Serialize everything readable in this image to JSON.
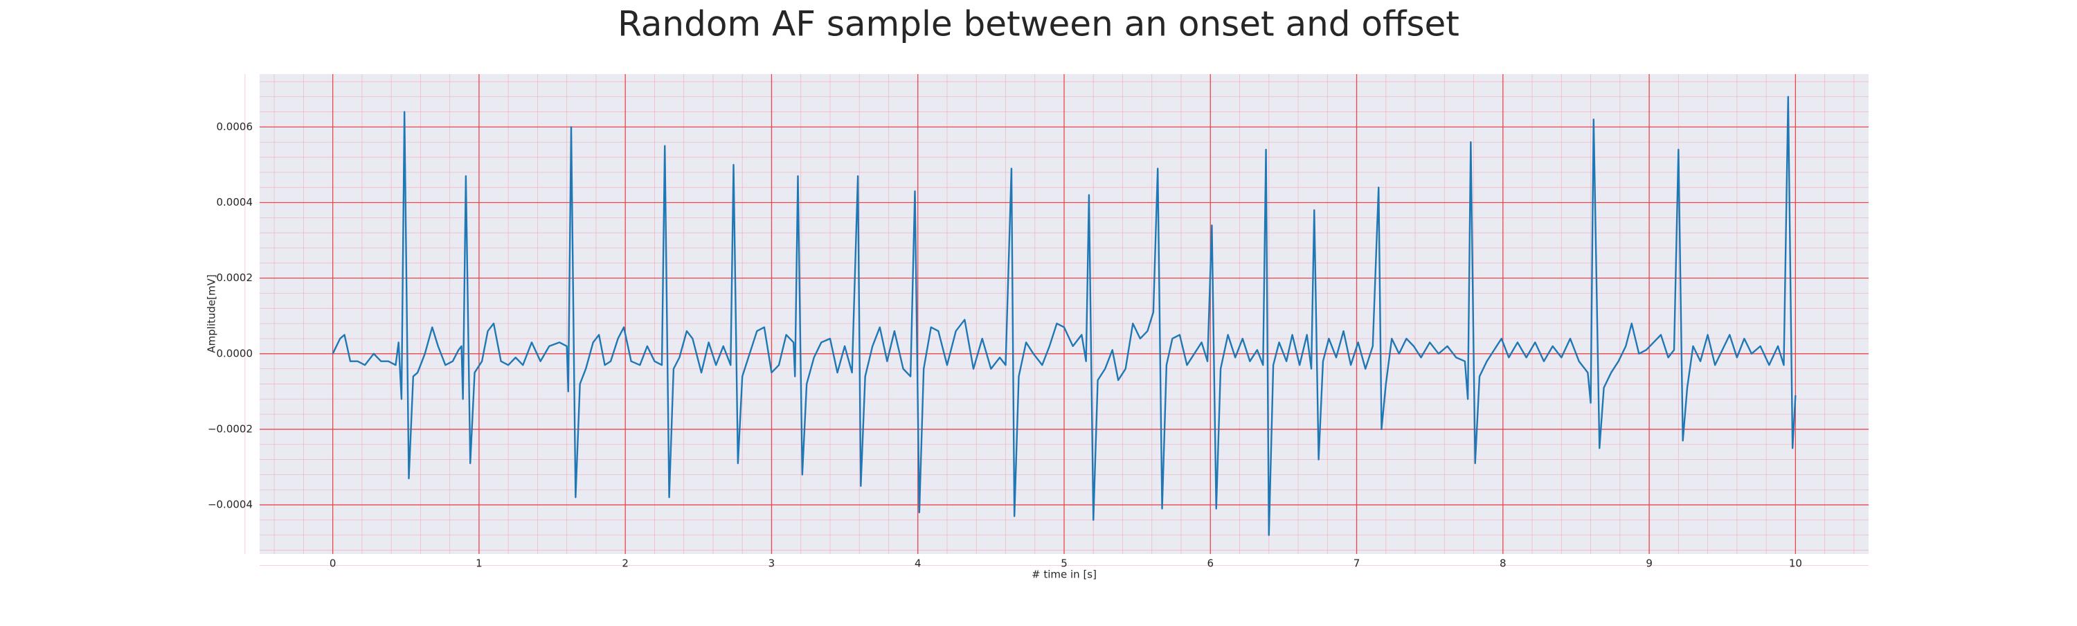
{
  "chart_data": {
    "type": "line",
    "title": "Random AF sample between an onset and offset",
    "x_label": "# time in [s]",
    "y_label": "Amplitude[mV]",
    "color": "#1f77b4",
    "grid": true,
    "minor_grid": true,
    "xlim": [
      -0.5,
      10.5
    ],
    "ylim": [
      -0.00053,
      0.00074
    ],
    "xticks": [
      0,
      1,
      2,
      3,
      4,
      5,
      6,
      7,
      8,
      9,
      10
    ],
    "yticks": [
      {
        "value": -0.0004,
        "label": "−0.0004"
      },
      {
        "value": -0.0002,
        "label": "−0.0002"
      },
      {
        "value": 0,
        "label": "0.0000"
      },
      {
        "value": 0.0002,
        "label": "0.0002"
      },
      {
        "value": 0.0004,
        "label": "0.0004"
      },
      {
        "value": 0.0006,
        "label": "0.0006"
      }
    ],
    "x": [
      0,
      0.05,
      0.08,
      0.12,
      0.17,
      0.22,
      0.28,
      0.33,
      0.38,
      0.43,
      0.45,
      0.47,
      0.49,
      0.52,
      0.55,
      0.58,
      0.63,
      0.68,
      0.72,
      0.77,
      0.82,
      0.86,
      0.88,
      0.89,
      0.91,
      0.94,
      0.97,
      1.02,
      1.06,
      1.1,
      1.15,
      1.2,
      1.25,
      1.3,
      1.36,
      1.42,
      1.48,
      1.55,
      1.6,
      1.61,
      1.63,
      1.66,
      1.69,
      1.73,
      1.78,
      1.82,
      1.86,
      1.9,
      1.95,
      1.99,
      2.04,
      2.1,
      2.15,
      2.2,
      2.25,
      2.27,
      2.3,
      2.33,
      2.37,
      2.42,
      2.46,
      2.52,
      2.57,
      2.62,
      2.67,
      2.72,
      2.74,
      2.77,
      2.8,
      2.85,
      2.9,
      2.95,
      3.0,
      3.05,
      3.1,
      3.15,
      3.16,
      3.18,
      3.21,
      3.24,
      3.29,
      3.34,
      3.4,
      3.45,
      3.5,
      3.55,
      3.59,
      3.61,
      3.64,
      3.69,
      3.74,
      3.79,
      3.84,
      3.9,
      3.95,
      3.98,
      4.01,
      4.04,
      4.09,
      4.14,
      4.2,
      4.26,
      4.32,
      4.38,
      4.44,
      4.5,
      4.56,
      4.6,
      4.64,
      4.66,
      4.69,
      4.74,
      4.79,
      4.85,
      4.9,
      4.95,
      5.0,
      5.06,
      5.12,
      5.15,
      5.17,
      5.2,
      5.23,
      5.28,
      5.33,
      5.37,
      5.42,
      5.47,
      5.52,
      5.57,
      5.61,
      5.64,
      5.67,
      5.7,
      5.74,
      5.79,
      5.84,
      5.89,
      5.94,
      5.98,
      6.01,
      6.04,
      6.07,
      6.12,
      6.17,
      6.22,
      6.27,
      6.32,
      6.36,
      6.38,
      6.4,
      6.43,
      6.47,
      6.52,
      6.56,
      6.61,
      6.66,
      6.69,
      6.71,
      6.74,
      6.77,
      6.81,
      6.86,
      6.91,
      6.96,
      7.01,
      7.06,
      7.11,
      7.15,
      7.17,
      7.2,
      7.24,
      7.29,
      7.34,
      7.39,
      7.44,
      7.5,
      7.56,
      7.62,
      7.68,
      7.74,
      7.76,
      7.78,
      7.81,
      7.84,
      7.89,
      7.94,
      7.99,
      8.04,
      8.1,
      8.16,
      8.22,
      8.28,
      8.34,
      8.4,
      8.46,
      8.52,
      8.58,
      8.6,
      8.62,
      8.66,
      8.69,
      8.74,
      8.79,
      8.84,
      8.88,
      8.93,
      8.98,
      9.03,
      9.08,
      9.13,
      9.17,
      9.2,
      9.23,
      9.26,
      9.3,
      9.35,
      9.4,
      9.45,
      9.5,
      9.55,
      9.6,
      9.65,
      9.7,
      9.76,
      9.82,
      9.88,
      9.92,
      9.95,
      9.98,
      10.0
    ],
    "values": [
      0,
      4e-05,
      5e-05,
      -2e-05,
      -2e-05,
      -3e-05,
      0,
      -2e-05,
      -2e-05,
      -3e-05,
      3e-05,
      -0.00012,
      0.00064,
      -0.00033,
      -6e-05,
      -5e-05,
      0,
      7e-05,
      2e-05,
      -3e-05,
      -2e-05,
      1e-05,
      2e-05,
      -0.00012,
      0.00047,
      -0.00029,
      -5e-05,
      -2e-05,
      6e-05,
      8e-05,
      -2e-05,
      -3e-05,
      -1e-05,
      -3e-05,
      3e-05,
      -2e-05,
      2e-05,
      3e-05,
      2e-05,
      -0.0001,
      0.0006,
      -0.00038,
      -8e-05,
      -4e-05,
      3e-05,
      5e-05,
      -3e-05,
      -2e-05,
      4e-05,
      7e-05,
      -2e-05,
      -3e-05,
      2e-05,
      -2e-05,
      -3e-05,
      0.00055,
      -0.00038,
      -4e-05,
      -1e-05,
      6e-05,
      4e-05,
      -5e-05,
      3e-05,
      -3e-05,
      2e-05,
      -3e-05,
      0.0005,
      -0.00029,
      -6e-05,
      0,
      6e-05,
      7e-05,
      -5e-05,
      -3e-05,
      5e-05,
      3e-05,
      -6e-05,
      0.00047,
      -0.00032,
      -8e-05,
      -1e-05,
      3e-05,
      4e-05,
      -5e-05,
      2e-05,
      -5e-05,
      0.00047,
      -0.00035,
      -6e-05,
      2e-05,
      7e-05,
      -2e-05,
      6e-05,
      -4e-05,
      -6e-05,
      0.00043,
      -0.00042,
      -4e-05,
      7e-05,
      6e-05,
      -3e-05,
      6e-05,
      9e-05,
      -4e-05,
      4e-05,
      -4e-05,
      -1e-05,
      -3e-05,
      0.00049,
      -0.00043,
      -6e-05,
      3e-05,
      0,
      -3e-05,
      2e-05,
      8e-05,
      7e-05,
      2e-05,
      5e-05,
      -2e-05,
      0.00042,
      -0.00044,
      -7e-05,
      -4e-05,
      1e-05,
      -7e-05,
      -4e-05,
      8e-05,
      4e-05,
      6e-05,
      0.00011,
      0.00049,
      -0.00041,
      -3e-05,
      4e-05,
      5e-05,
      -3e-05,
      0,
      3e-05,
      -2e-05,
      0.00034,
      -0.00041,
      -4e-05,
      5e-05,
      -1e-05,
      4e-05,
      -2e-05,
      1e-05,
      -3e-05,
      0.00054,
      -0.00048,
      -3e-05,
      3e-05,
      -2e-05,
      5e-05,
      -3e-05,
      5e-05,
      -4e-05,
      0.00038,
      -0.00028,
      -2e-05,
      4e-05,
      -1e-05,
      6e-05,
      -3e-05,
      3e-05,
      -4e-05,
      2e-05,
      0.00044,
      -0.0002,
      -8e-05,
      4e-05,
      0,
      4e-05,
      2e-05,
      -1e-05,
      3e-05,
      0,
      2e-05,
      -1e-05,
      -2e-05,
      -0.00012,
      0.00056,
      -0.00029,
      -6e-05,
      -2e-05,
      1e-05,
      4e-05,
      -1e-05,
      3e-05,
      -1e-05,
      3e-05,
      -2e-05,
      2e-05,
      -1e-05,
      4e-05,
      -2e-05,
      -5e-05,
      -0.00013,
      0.00062,
      -0.00025,
      -9e-05,
      -5e-05,
      -2e-05,
      2e-05,
      8e-05,
      0,
      1e-05,
      3e-05,
      5e-05,
      -1e-05,
      1e-05,
      0.00054,
      -0.00023,
      -9e-05,
      2e-05,
      -2e-05,
      5e-05,
      -3e-05,
      1e-05,
      5e-05,
      -1e-05,
      4e-05,
      0,
      2e-05,
      -3e-05,
      2e-05,
      -3e-05,
      0.00068,
      -0.00025,
      -0.00011
    ]
  }
}
